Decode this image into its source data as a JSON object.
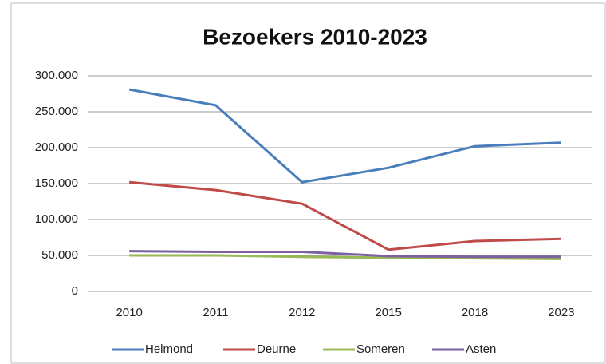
{
  "chart_data": {
    "type": "line",
    "title": "Bezoekers 2010-2023",
    "categories": [
      "2010",
      "2011",
      "2012",
      "2015",
      "2018",
      "2023"
    ],
    "series": [
      {
        "name": "Helmond",
        "color": "#4a7ebb",
        "values": [
          281000,
          259000,
          152000,
          172000,
          202000,
          207000
        ]
      },
      {
        "name": "Deurne",
        "color": "#be4b48",
        "values": [
          152000,
          141000,
          122000,
          58000,
          70000,
          73000
        ]
      },
      {
        "name": "Someren",
        "color": "#98b954",
        "values": [
          50000,
          50000,
          48000,
          47000,
          46000,
          45000
        ]
      },
      {
        "name": "Asten",
        "color": "#7d60a0",
        "values": [
          56000,
          55000,
          55000,
          49000,
          48000,
          48000
        ]
      }
    ],
    "ylim": [
      0,
      300000
    ],
    "yticks": [
      0,
      {
        "value": 50000,
        "label": "50.000"
      },
      {
        "value": 100000,
        "label": "100.000"
      },
      {
        "value": 150000,
        "label": "150.000"
      },
      {
        "value": 200000,
        "label": "200.000"
      },
      {
        "value": 250000,
        "label": "250.000"
      },
      {
        "value": 300000,
        "label": "300.000"
      }
    ],
    "grid": true,
    "legend": "bottom"
  }
}
